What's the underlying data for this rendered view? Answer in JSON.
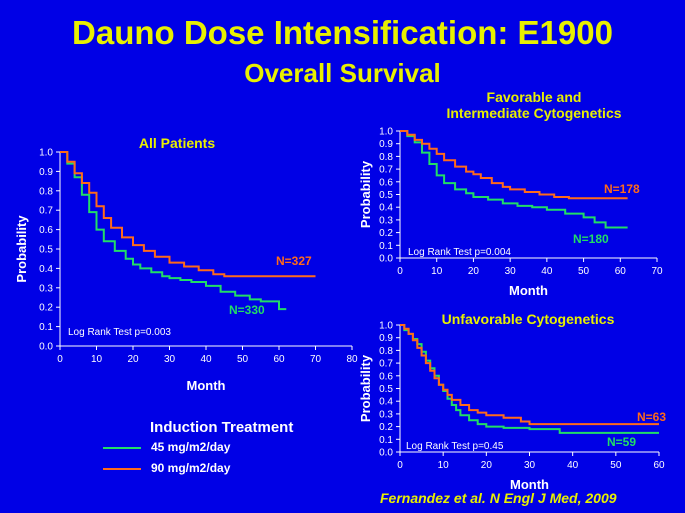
{
  "slide": {
    "title": "Dauno Dose Intensification: E1900",
    "subtitle": "Overall Survival",
    "citation": "Fernandez  et al. N Engl J Med, 2009"
  },
  "legend": {
    "title": "Induction Treatment",
    "items": [
      {
        "label": "45 mg/m2/day",
        "color": "#22dd66"
      },
      {
        "label": "90 mg/m2/day",
        "color": "#ff6a1a"
      }
    ]
  },
  "chart_data": [
    {
      "type": "line",
      "title": "All Patients",
      "xlabel": "Month",
      "ylabel": "Probability",
      "xlim": [
        0,
        80
      ],
      "ylim": [
        0,
        1.0
      ],
      "xticks": [
        0,
        10,
        20,
        30,
        40,
        50,
        60,
        70,
        80
      ],
      "yticks": [
        "0.0",
        "0.1",
        "0.2",
        "0.3",
        "0.4",
        "0.5",
        "0.6",
        "0.7",
        "0.8",
        "0.9",
        "1.0"
      ],
      "annotation": "Log Rank Test p=0.003",
      "series": [
        {
          "label": "N=330",
          "color": "#22dd66",
          "x": [
            0,
            2,
            4,
            6,
            8,
            10,
            12,
            15,
            18,
            20,
            22,
            25,
            28,
            30,
            33,
            36,
            40,
            44,
            48,
            52,
            55,
            60,
            62
          ],
          "y": [
            1.0,
            0.94,
            0.87,
            0.78,
            0.69,
            0.6,
            0.54,
            0.49,
            0.45,
            0.42,
            0.4,
            0.38,
            0.36,
            0.35,
            0.34,
            0.33,
            0.31,
            0.28,
            0.26,
            0.24,
            0.23,
            0.19,
            0.19
          ]
        },
        {
          "label": "N=327",
          "color": "#ff6a1a",
          "x": [
            0,
            2,
            4,
            6,
            8,
            10,
            12,
            14,
            17,
            20,
            23,
            26,
            30,
            34,
            38,
            42,
            45,
            50,
            55,
            60,
            65,
            70
          ],
          "y": [
            1.0,
            0.95,
            0.89,
            0.84,
            0.79,
            0.72,
            0.66,
            0.61,
            0.56,
            0.52,
            0.49,
            0.46,
            0.43,
            0.41,
            0.39,
            0.37,
            0.36,
            0.36,
            0.36,
            0.36,
            0.36,
            0.36
          ]
        }
      ]
    },
    {
      "type": "line",
      "title": "Favorable and\nIntermediate Cytogenetics",
      "xlabel": "Month",
      "ylabel": "Probability",
      "xlim": [
        0,
        70
      ],
      "ylim": [
        0,
        1.0
      ],
      "xticks": [
        0,
        10,
        20,
        30,
        40,
        50,
        60,
        70
      ],
      "yticks": [
        "0.0",
        "0.1",
        "0.2",
        "0.3",
        "0.4",
        "0.5",
        "0.6",
        "0.7",
        "0.8",
        "0.9",
        "1.0"
      ],
      "annotation": "Log Rank Test p=0.004",
      "series": [
        {
          "label": "N=180",
          "color": "#22dd66",
          "x": [
            0,
            2,
            4,
            6,
            8,
            10,
            12,
            15,
            18,
            20,
            24,
            28,
            32,
            36,
            40,
            45,
            50,
            53,
            56,
            60,
            62
          ],
          "y": [
            1.0,
            0.96,
            0.91,
            0.83,
            0.74,
            0.65,
            0.59,
            0.54,
            0.51,
            0.48,
            0.46,
            0.43,
            0.41,
            0.4,
            0.38,
            0.35,
            0.32,
            0.28,
            0.24,
            0.24,
            0.24
          ]
        },
        {
          "label": "N=178",
          "color": "#ff6a1a",
          "x": [
            0,
            2,
            4,
            6,
            8,
            10,
            12,
            15,
            18,
            20,
            22,
            25,
            28,
            30,
            34,
            38,
            42,
            46,
            50,
            55,
            62
          ],
          "y": [
            1.0,
            0.97,
            0.93,
            0.9,
            0.86,
            0.82,
            0.77,
            0.72,
            0.68,
            0.66,
            0.63,
            0.59,
            0.56,
            0.54,
            0.52,
            0.5,
            0.48,
            0.47,
            0.47,
            0.47,
            0.47
          ]
        }
      ]
    },
    {
      "type": "line",
      "title": "Unfavorable Cytogenetics",
      "xlabel": "Month",
      "ylabel": "Probability",
      "xlim": [
        0,
        60
      ],
      "ylim": [
        0,
        1.0
      ],
      "xticks": [
        0,
        10,
        20,
        30,
        40,
        50,
        60
      ],
      "yticks": [
        "0.0",
        "0.1",
        "0.2",
        "0.3",
        "0.4",
        "0.5",
        "0.6",
        "0.7",
        "0.8",
        "0.9",
        "1.0"
      ],
      "annotation": "Log Rank Test p=0.45",
      "series": [
        {
          "label": "N=59",
          "color": "#22dd66",
          "x": [
            0,
            1,
            2,
            3,
            4,
            5,
            6,
            7,
            8,
            9,
            10,
            11,
            12,
            13,
            14,
            16,
            18,
            20,
            24,
            28,
            30,
            33,
            37,
            42,
            48,
            55,
            60
          ],
          "y": [
            1.0,
            0.96,
            0.93,
            0.89,
            0.85,
            0.79,
            0.72,
            0.66,
            0.6,
            0.53,
            0.48,
            0.42,
            0.37,
            0.33,
            0.29,
            0.25,
            0.22,
            0.2,
            0.19,
            0.19,
            0.18,
            0.18,
            0.15,
            0.15,
            0.15,
            0.15,
            0.15
          ]
        },
        {
          "label": "N=63",
          "color": "#ff6a1a",
          "x": [
            0,
            1,
            2,
            3,
            4,
            5,
            6,
            7,
            8,
            9,
            10,
            11,
            12,
            14,
            16,
            18,
            20,
            24,
            28,
            30,
            35,
            40,
            50,
            60
          ],
          "y": [
            1.0,
            0.97,
            0.93,
            0.88,
            0.82,
            0.76,
            0.7,
            0.64,
            0.58,
            0.53,
            0.49,
            0.45,
            0.41,
            0.37,
            0.33,
            0.31,
            0.29,
            0.27,
            0.24,
            0.22,
            0.22,
            0.22,
            0.22,
            0.22
          ]
        }
      ]
    }
  ]
}
